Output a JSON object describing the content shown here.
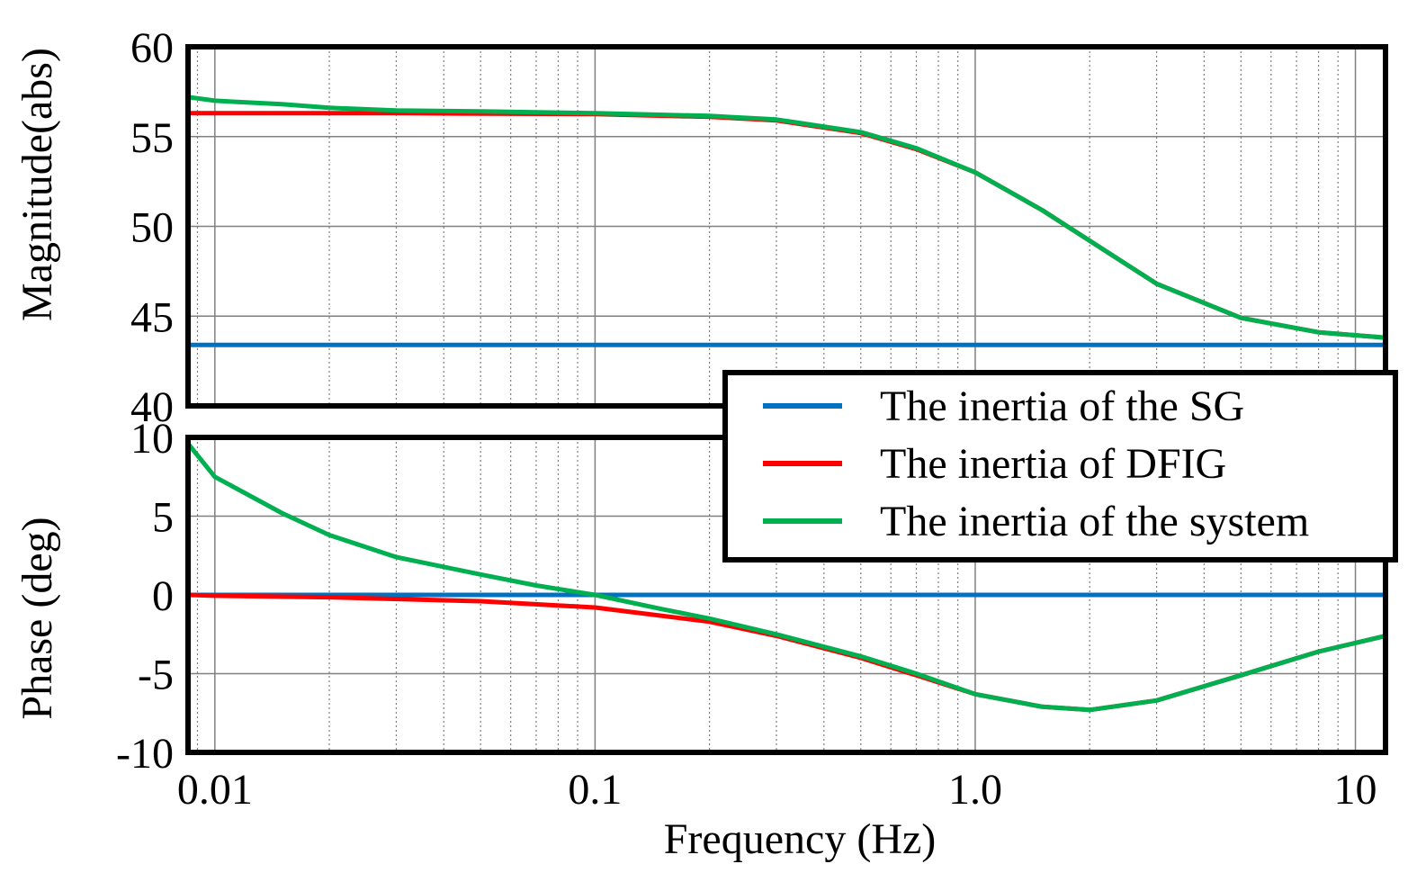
{
  "chart_data": [
    {
      "type": "line",
      "panel": "magnitude",
      "ylabel": "Magnitude(abs)",
      "xscale": "log",
      "xlim": [
        0.0085,
        12
      ],
      "ylim": [
        40,
        60
      ],
      "yticks": [
        40,
        45,
        50,
        55,
        60
      ],
      "ytick_labels": [
        "40",
        "45",
        "50",
        "55",
        "60"
      ],
      "grid": true,
      "series": [
        {
          "name": "The inertia of the SG",
          "color": "#0070c0",
          "x": [
            0.0085,
            12
          ],
          "y": [
            43.4,
            43.4
          ]
        },
        {
          "name": "The inertia of DFIG",
          "color": "#ff0000",
          "x": [
            0.0085,
            0.01,
            0.03,
            0.1,
            0.2,
            0.3,
            0.5,
            0.7,
            1.0,
            1.5,
            2.0,
            3.0,
            5.0,
            8.0,
            12
          ],
          "y": [
            56.3,
            56.3,
            56.3,
            56.25,
            56.1,
            55.9,
            55.2,
            54.3,
            53.0,
            50.9,
            49.2,
            46.8,
            44.9,
            44.1,
            43.8
          ]
        },
        {
          "name": "The inertia of the system",
          "color": "#00b050",
          "x": [
            0.0085,
            0.01,
            0.015,
            0.02,
            0.03,
            0.05,
            0.1,
            0.2,
            0.3,
            0.5,
            0.7,
            1.0,
            1.5,
            2.0,
            3.0,
            5.0,
            8.0,
            12
          ],
          "y": [
            57.2,
            57.0,
            56.8,
            56.6,
            56.45,
            56.4,
            56.3,
            56.15,
            55.95,
            55.25,
            54.35,
            53.0,
            50.9,
            49.2,
            46.8,
            44.9,
            44.1,
            43.8
          ]
        }
      ]
    },
    {
      "type": "line",
      "panel": "phase",
      "ylabel": "Phase (deg)",
      "xlabel": "Frequency (Hz)",
      "xscale": "log",
      "xlim": [
        0.0085,
        12
      ],
      "ylim": [
        -10,
        10
      ],
      "xticks": [
        0.01,
        0.1,
        1.0,
        10
      ],
      "xtick_labels": [
        "0.01",
        "0.1",
        "1.0",
        "10"
      ],
      "yticks": [
        -10,
        -5,
        0,
        5,
        10
      ],
      "ytick_labels": [
        "-10",
        "-5",
        "0",
        "5",
        "10"
      ],
      "grid": true,
      "series": [
        {
          "name": "The inertia of the SG",
          "color": "#0070c0",
          "x": [
            0.0085,
            12
          ],
          "y": [
            0,
            0
          ]
        },
        {
          "name": "The inertia of DFIG",
          "color": "#ff0000",
          "x": [
            0.0085,
            0.01,
            0.02,
            0.05,
            0.1,
            0.2,
            0.3,
            0.5,
            0.7,
            1.0,
            1.5,
            2.0,
            3.0,
            5.0,
            8.0,
            12
          ],
          "y": [
            0,
            -0.05,
            -0.15,
            -0.4,
            -0.8,
            -1.7,
            -2.6,
            -4.0,
            -5.1,
            -6.3,
            -7.1,
            -7.3,
            -6.7,
            -5.1,
            -3.6,
            -2.6
          ]
        },
        {
          "name": "The inertia of the system",
          "color": "#00b050",
          "x": [
            0.0085,
            0.01,
            0.015,
            0.02,
            0.03,
            0.05,
            0.07,
            0.1,
            0.15,
            0.2,
            0.3,
            0.5,
            0.7,
            1.0,
            1.5,
            2.0,
            3.0,
            5.0,
            8.0,
            12
          ],
          "y": [
            9.6,
            7.5,
            5.2,
            3.8,
            2.4,
            1.3,
            0.6,
            0.0,
            -0.9,
            -1.5,
            -2.5,
            -3.9,
            -5.0,
            -6.3,
            -7.1,
            -7.3,
            -6.7,
            -5.1,
            -3.6,
            -2.6
          ]
        }
      ],
      "legend": {
        "position": "top-right",
        "entries": [
          "The inertia of the SG",
          "The inertia of DFIG",
          "The inertia of the system"
        ]
      }
    }
  ]
}
